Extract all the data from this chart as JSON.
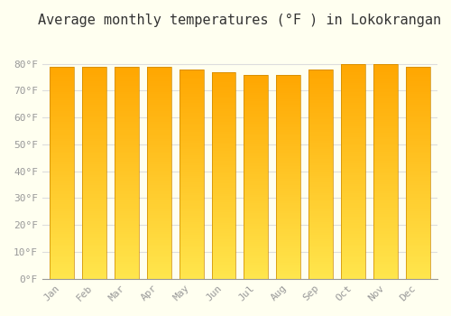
{
  "title": "Average monthly temperatures (°F ) in Lokokrangan",
  "months": [
    "Jan",
    "Feb",
    "Mar",
    "Apr",
    "May",
    "Jun",
    "Jul",
    "Aug",
    "Sep",
    "Oct",
    "Nov",
    "Dec"
  ],
  "values": [
    79,
    79,
    79,
    79,
    78,
    77,
    76,
    76,
    78,
    80,
    80,
    79
  ],
  "bar_edge_color": "#CC8800",
  "background_color": "#FFFFF0",
  "grid_color": "#DDDDDD",
  "ylim": [
    0,
    90
  ],
  "yticks": [
    0,
    10,
    20,
    30,
    40,
    50,
    60,
    70,
    80
  ],
  "ytick_labels": [
    "0°F",
    "10°F",
    "20°F",
    "30°F",
    "40°F",
    "50°F",
    "60°F",
    "70°F",
    "80°F"
  ],
  "title_fontsize": 11,
  "tick_fontsize": 8,
  "font_color": "#999999",
  "title_color": "#333333"
}
